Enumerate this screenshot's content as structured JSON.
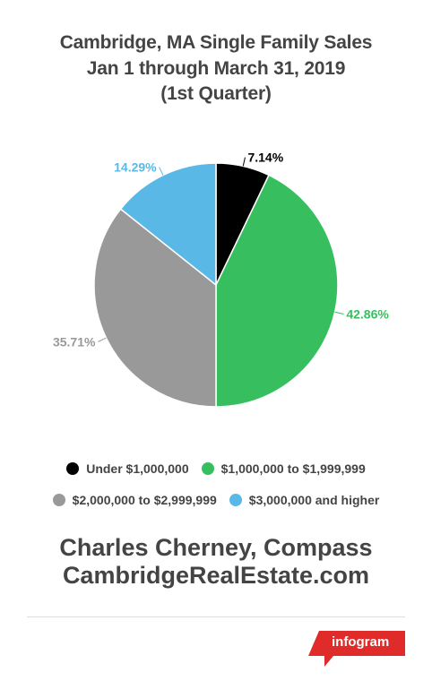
{
  "title_lines": [
    "Cambridge, MA Single Family Sales",
    "Jan 1 through March 31, 2019",
    "(1st Quarter)"
  ],
  "chart_data": {
    "type": "pie",
    "title": "Cambridge, MA Single Family Sales Jan 1 through March 31, 2019 (1st Quarter)",
    "slices": [
      {
        "label": "Under $1,000,000",
        "value": 7.14,
        "display": "7.14%",
        "color": "#000000",
        "label_color": "#000000"
      },
      {
        "label": "$1,000,000 to $1,999,999",
        "value": 42.86,
        "display": "42.86%",
        "color": "#37bf5f",
        "label_color": "#37bf5f"
      },
      {
        "label": "$2,000,000 to $2,999,999",
        "value": 35.71,
        "display": "35.71%",
        "color": "#999999",
        "label_color": "#999999"
      },
      {
        "label": "$3,000,000 and higher",
        "value": 14.29,
        "display": "14.29%",
        "color": "#5ab8e6",
        "label_color": "#5ab8e6"
      }
    ],
    "legend_position": "bottom"
  },
  "legend": {
    "row1": [
      {
        "label": "Under $1,000,000",
        "color": "#000000"
      },
      {
        "label": "$1,000,000 to $1,999,999",
        "color": "#37bf5f"
      }
    ],
    "row2": [
      {
        "label": "$2,000,000 to $2,999,999",
        "color": "#999999"
      },
      {
        "label": "$3,000,000 and higher",
        "color": "#5ab8e6"
      }
    ]
  },
  "credit": {
    "line1": "Charles Cherney, Compass",
    "line2": "CambridgeRealEstate.com"
  },
  "badge": {
    "text": "infogram",
    "color": "#e02b2b"
  }
}
